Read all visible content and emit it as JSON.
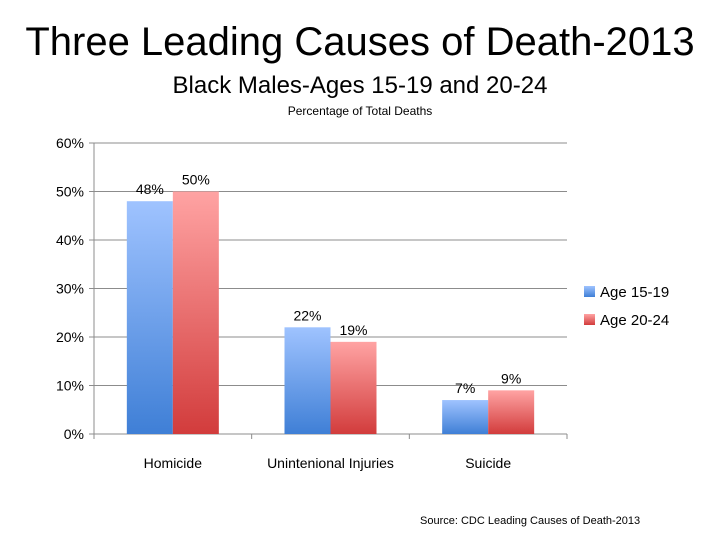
{
  "slide": {
    "title": "Three Leading Causes of Death-2013",
    "subtitle": "Black Males-Ages 15-19 and 20-24",
    "subtitle2": "Percentage of Total Deaths",
    "source": "Source: CDC Leading Causes of Death-2013"
  },
  "chart_data": {
    "type": "bar",
    "title": "Three Leading Causes of Death-2013",
    "subtitle": "Black Males-Ages 15-19 and 20-24",
    "ylabel": "",
    "xlabel": "",
    "categories": [
      "Homicide",
      "Unintenional Injuries",
      "Suicide"
    ],
    "series": [
      {
        "name": "Age 15-19",
        "values": [
          48,
          22,
          7
        ],
        "labels": [
          "48%",
          "22%",
          "7%"
        ],
        "color_top": "#9fc3ff",
        "color_bottom": "#3f7fd6"
      },
      {
        "name": "Age 20-24",
        "values": [
          50,
          19,
          9
        ],
        "labels": [
          "50%",
          "19%",
          "9%"
        ],
        "color_top": "#ffa3a3",
        "color_bottom": "#d23c3c"
      }
    ],
    "ylim": [
      0,
      60
    ],
    "yticks": [
      0,
      10,
      20,
      30,
      40,
      50,
      60
    ],
    "ytick_labels": [
      "0%",
      "10%",
      "20%",
      "30%",
      "40%",
      "50%",
      "60%"
    ],
    "grid": true,
    "legend_position": "right"
  }
}
